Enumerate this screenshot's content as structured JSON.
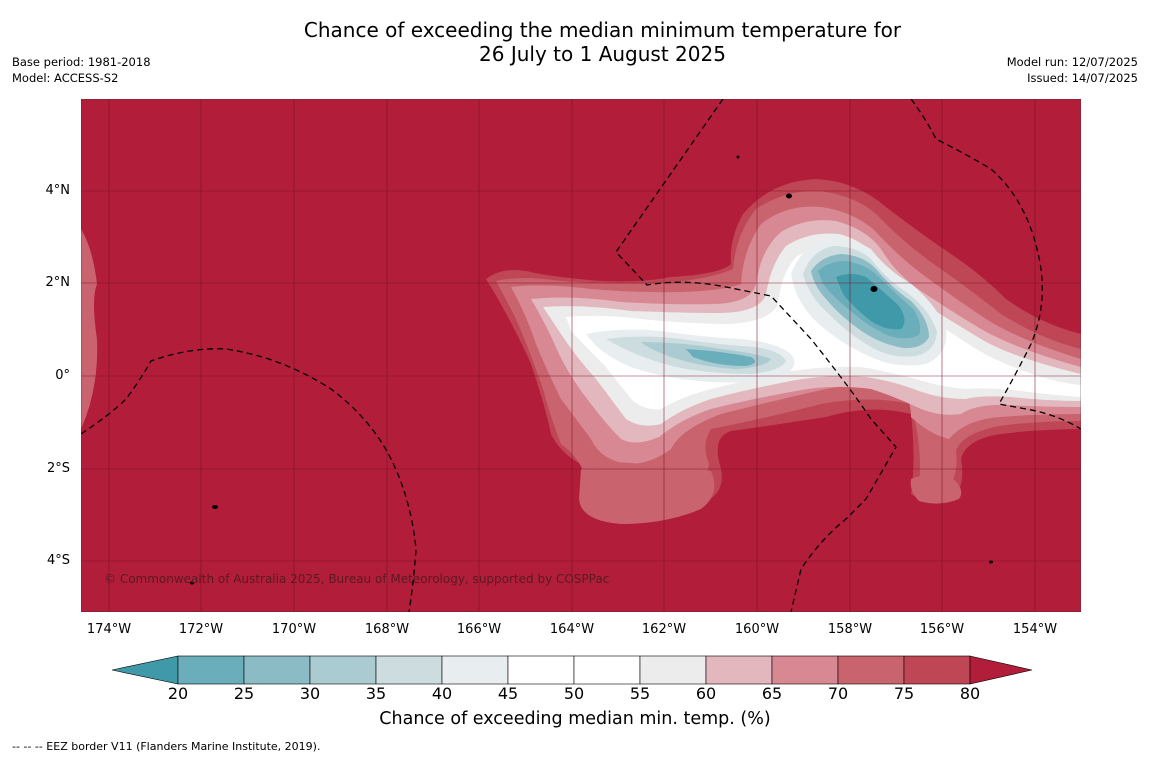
{
  "title_line1": "Chance of exceeding the median minimum temperature for",
  "title_line2": "26 July to 1 August 2025",
  "base_period": "Base period: 1981-2018",
  "model": "Model: ACCESS-S2",
  "model_run": "Model run: 12/07/2025",
  "issued": "Issued: 14/07/2025",
  "y_ticks": [
    "4°N",
    "2°N",
    "0°",
    "2°S",
    "4°S"
  ],
  "x_ticks": [
    "174°W",
    "172°W",
    "170°W",
    "168°W",
    "166°W",
    "164°W",
    "162°W",
    "160°W",
    "158°W",
    "156°W",
    "154°W"
  ],
  "copyright": "© Commonwealth of Australia 2025, Bureau of Meteorology, supported by COSPPac",
  "colorbar": {
    "ticks": [
      "20",
      "25",
      "30",
      "35",
      "40",
      "45",
      "50",
      "55",
      "60",
      "65",
      "70",
      "75",
      "80"
    ],
    "colors": [
      "#3f99a8",
      "#6aadbb",
      "#8bbcc6",
      "#aacbd1",
      "#ccdcdf",
      "#e8eef0",
      "#ffffff",
      "#ffffff",
      "#ececec",
      "#e2b7bd",
      "#d78893",
      "#c9636e",
      "#bf4655",
      "#b21d3a"
    ],
    "title": "Chance of exceeding median min. temp. (%)"
  },
  "footnote": "--  --  -- EEZ border V11 (Flanders Marine Institute, 2019).",
  "map_background_color": "#b21d3a"
}
